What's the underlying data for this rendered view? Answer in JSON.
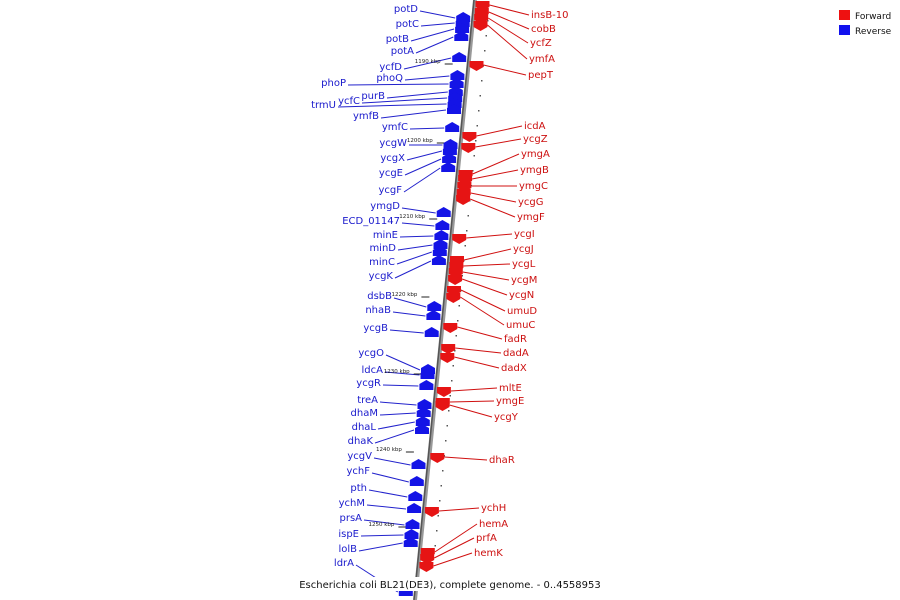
{
  "caption": "Escherichia coli BL21(DE3), complete genome. - 0..4558953",
  "legend": [
    {
      "label": "Forward",
      "color": "#ee1111"
    },
    {
      "label": "Reverse",
      "color": "#1111ee"
    }
  ],
  "colors": {
    "reverse": "#1414e6",
    "forward": "#e61414",
    "reverse_line": "#2222cc",
    "forward_line": "#d01010",
    "axis": "#777777"
  },
  "scale": {
    "unit": "kbp",
    "ticks": [
      1190,
      1200,
      1210,
      1220,
      1230,
      1240,
      1250
    ]
  },
  "reverse_genes": [
    "potD",
    "potC",
    "potB",
    "potA",
    "ycfD",
    "phoQ",
    "phoP",
    "purB",
    "ycfC",
    "trmU",
    "ymfB",
    "ymfC",
    "ycgW",
    "ycgX",
    "ycgE",
    "ycgF",
    "ymgD",
    "ECD_01147",
    "minE",
    "minD",
    "minC",
    "ycgK",
    "dsbB",
    "nhaB",
    "ycgB",
    "ycgO",
    "ldcA",
    "ycgR",
    "treA",
    "dhaM",
    "dhaL",
    "dhaK",
    "ycgV",
    "ychF",
    "pth",
    "ychM",
    "prsA",
    "ispE",
    "lolB",
    "ldrA"
  ],
  "forward_genes": [
    "insB-10",
    "cobB",
    "ycfZ",
    "ymfA",
    "pepT",
    "icdA",
    "ycgZ",
    "ymgA",
    "ymgB",
    "ymgC",
    "ycgG",
    "ymgF",
    "ycgI",
    "ycgJ",
    "ycgL",
    "ycgM",
    "ycgN",
    "umuD",
    "umuC",
    "fadR",
    "dadA",
    "dadX",
    "mltE",
    "ymgE",
    "ycgY",
    "dhaR",
    "ychH",
    "hemA",
    "prfA",
    "hemK"
  ]
}
